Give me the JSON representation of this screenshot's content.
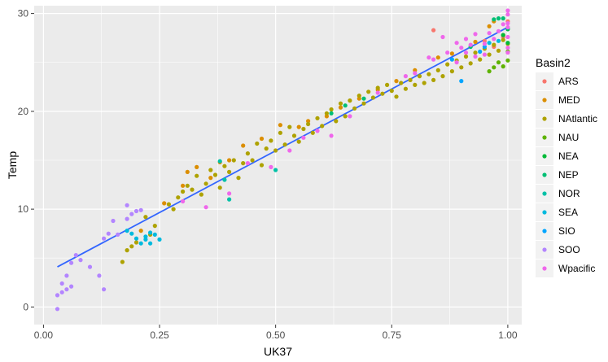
{
  "chart_data": {
    "type": "scatter",
    "xlabel": "UK37",
    "ylabel": "Temp",
    "xlim": [
      -0.02,
      1.03
    ],
    "ylim": [
      -1.8,
      30.8
    ],
    "xticks": [
      0.0,
      0.25,
      0.5,
      0.75,
      1.0
    ],
    "xtick_labels": [
      "0.00",
      "0.25",
      "0.50",
      "0.75",
      "1.00"
    ],
    "yticks": [
      0,
      10,
      20,
      30
    ],
    "ytick_labels": [
      "0",
      "10",
      "20",
      "30"
    ],
    "grid": true,
    "legend": {
      "title": "Basin2",
      "placement": "right",
      "entries": [
        "ARS",
        "MED",
        "NAtlantic",
        "NAU",
        "NEA",
        "NEP",
        "NOR",
        "SEA",
        "SIO",
        "SOO",
        "Wpacific"
      ]
    },
    "fit_line": {
      "label": "linear fit",
      "color": "#3366FF",
      "x": [
        0.03,
        1.0
      ],
      "y": [
        4.1,
        28.6
      ]
    },
    "series": [
      {
        "name": "ARS",
        "color": "#F8766D",
        "points": [
          [
            0.84,
            28.3
          ],
          [
            0.95,
            27.2
          ],
          [
            0.97,
            26.6
          ],
          [
            0.99,
            27.6
          ],
          [
            1.0,
            29.2
          ]
        ]
      },
      {
        "name": "MED",
        "color": "#DB8E00",
        "points": [
          [
            0.21,
            7.8
          ],
          [
            0.26,
            10.6
          ],
          [
            0.3,
            12.4
          ],
          [
            0.31,
            13.8
          ],
          [
            0.33,
            14.3
          ],
          [
            0.36,
            13.2
          ],
          [
            0.38,
            14.8
          ],
          [
            0.4,
            15.0
          ],
          [
            0.43,
            16.5
          ],
          [
            0.47,
            17.2
          ],
          [
            0.51,
            18.6
          ],
          [
            0.55,
            18.4
          ],
          [
            0.57,
            19.0
          ],
          [
            0.61,
            19.5
          ],
          [
            0.64,
            20.4
          ],
          [
            0.68,
            21.3
          ],
          [
            0.72,
            22.2
          ],
          [
            0.76,
            23.1
          ],
          [
            0.8,
            24.2
          ],
          [
            0.85,
            25.5
          ],
          [
            0.88,
            25.9
          ],
          [
            0.93,
            27.1
          ],
          [
            0.96,
            28.7
          ],
          [
            0.97,
            29.2
          ],
          [
            0.99,
            27.8
          ]
        ]
      },
      {
        "name": "NAtlantic",
        "color": "#AEA200",
        "points": [
          [
            0.17,
            4.6
          ],
          [
            0.18,
            5.8
          ],
          [
            0.19,
            6.2
          ],
          [
            0.2,
            6.6
          ],
          [
            0.22,
            9.2
          ],
          [
            0.23,
            7.4
          ],
          [
            0.24,
            8.3
          ],
          [
            0.27,
            10.5
          ],
          [
            0.28,
            10.0
          ],
          [
            0.29,
            11.2
          ],
          [
            0.3,
            11.8
          ],
          [
            0.31,
            12.4
          ],
          [
            0.32,
            12.0
          ],
          [
            0.33,
            13.4
          ],
          [
            0.34,
            11.5
          ],
          [
            0.35,
            12.6
          ],
          [
            0.36,
            14.0
          ],
          [
            0.37,
            13.5
          ],
          [
            0.38,
            12.2
          ],
          [
            0.39,
            14.4
          ],
          [
            0.4,
            13.8
          ],
          [
            0.41,
            15.0
          ],
          [
            0.42,
            13.2
          ],
          [
            0.43,
            14.7
          ],
          [
            0.44,
            15.7
          ],
          [
            0.45,
            15.0
          ],
          [
            0.46,
            16.7
          ],
          [
            0.47,
            14.5
          ],
          [
            0.48,
            16.2
          ],
          [
            0.49,
            17.0
          ],
          [
            0.5,
            16.0
          ],
          [
            0.51,
            17.8
          ],
          [
            0.52,
            16.6
          ],
          [
            0.53,
            18.4
          ],
          [
            0.54,
            17.5
          ],
          [
            0.55,
            16.9
          ],
          [
            0.56,
            18.2
          ],
          [
            0.57,
            18.7
          ],
          [
            0.58,
            17.8
          ],
          [
            0.59,
            19.3
          ],
          [
            0.6,
            18.5
          ],
          [
            0.61,
            19.8
          ],
          [
            0.62,
            20.2
          ],
          [
            0.63,
            19.0
          ],
          [
            0.64,
            20.8
          ],
          [
            0.65,
            19.5
          ],
          [
            0.66,
            21.1
          ],
          [
            0.67,
            20.3
          ],
          [
            0.68,
            21.6
          ],
          [
            0.69,
            20.8
          ],
          [
            0.7,
            22.0
          ],
          [
            0.71,
            21.4
          ],
          [
            0.72,
            22.4
          ],
          [
            0.73,
            21.8
          ],
          [
            0.74,
            22.7
          ],
          [
            0.75,
            22.1
          ],
          [
            0.76,
            21.5
          ],
          [
            0.77,
            22.9
          ],
          [
            0.78,
            22.3
          ],
          [
            0.79,
            23.2
          ],
          [
            0.8,
            22.7
          ],
          [
            0.81,
            23.6
          ],
          [
            0.82,
            22.9
          ],
          [
            0.83,
            23.8
          ],
          [
            0.84,
            23.2
          ],
          [
            0.85,
            24.2
          ],
          [
            0.86,
            23.6
          ],
          [
            0.87,
            24.8
          ],
          [
            0.88,
            24.1
          ],
          [
            0.89,
            25.2
          ],
          [
            0.9,
            24.5
          ],
          [
            0.91,
            25.6
          ],
          [
            0.92,
            24.9
          ],
          [
            0.93,
            26.0
          ],
          [
            0.94,
            25.3
          ],
          [
            0.95,
            26.4
          ],
          [
            0.96,
            25.8
          ],
          [
            0.97,
            26.8
          ],
          [
            0.98,
            26.2
          ],
          [
            0.99,
            27.3
          ],
          [
            1.0,
            26.9
          ]
        ]
      },
      {
        "name": "NAU",
        "color": "#5EB300",
        "points": [
          [
            0.96,
            24.1
          ],
          [
            0.97,
            24.5
          ],
          [
            0.98,
            25.0
          ],
          [
            0.99,
            24.6
          ],
          [
            1.0,
            26.1
          ],
          [
            1.0,
            25.2
          ]
        ]
      },
      {
        "name": "NEA",
        "color": "#00BA38",
        "points": [
          [
            0.99,
            27.8
          ],
          [
            1.0,
            28.4
          ],
          [
            1.0,
            27.0
          ]
        ]
      },
      {
        "name": "NEP",
        "color": "#00BF74",
        "points": [
          [
            0.62,
            19.8
          ],
          [
            0.65,
            20.6
          ],
          [
            0.69,
            21.3
          ],
          [
            0.92,
            26.6
          ],
          [
            0.97,
            29.4
          ],
          [
            0.98,
            29.5
          ],
          [
            0.99,
            29.5
          ],
          [
            1.0,
            28.5
          ]
        ]
      },
      {
        "name": "NOR",
        "color": "#00C1A7",
        "points": [
          [
            0.38,
            14.9
          ],
          [
            0.39,
            13.0
          ],
          [
            0.4,
            11.0
          ],
          [
            0.5,
            14.0
          ]
        ]
      },
      {
        "name": "SEA",
        "color": "#00BADE",
        "points": [
          [
            0.2,
            7.0
          ],
          [
            0.21,
            6.5
          ],
          [
            0.22,
            7.2
          ],
          [
            0.22,
            6.9
          ],
          [
            0.23,
            7.6
          ],
          [
            0.23,
            6.5
          ],
          [
            0.24,
            7.4
          ],
          [
            0.25,
            6.9
          ],
          [
            0.18,
            7.8
          ],
          [
            0.19,
            7.5
          ],
          [
            0.96,
            27.0
          ],
          [
            0.98,
            27.2
          ]
        ]
      },
      {
        "name": "SIO",
        "color": "#00A5FF",
        "points": [
          [
            0.88,
            25.3
          ],
          [
            0.9,
            23.1
          ],
          [
            0.94,
            26.1
          ],
          [
            0.95,
            26.6
          ]
        ]
      },
      {
        "name": "SOO",
        "color": "#B385FF",
        "points": [
          [
            0.03,
            -0.2
          ],
          [
            0.03,
            1.2
          ],
          [
            0.04,
            1.5
          ],
          [
            0.04,
            2.4
          ],
          [
            0.05,
            1.8
          ],
          [
            0.05,
            3.2
          ],
          [
            0.06,
            2.1
          ],
          [
            0.06,
            4.5
          ],
          [
            0.07,
            5.3
          ],
          [
            0.08,
            4.8
          ],
          [
            0.1,
            4.1
          ],
          [
            0.12,
            3.2
          ],
          [
            0.13,
            1.8
          ],
          [
            0.13,
            7.0
          ],
          [
            0.14,
            7.5
          ],
          [
            0.15,
            8.8
          ],
          [
            0.16,
            7.4
          ],
          [
            0.18,
            9.0
          ],
          [
            0.18,
            10.4
          ],
          [
            0.2,
            9.8
          ],
          [
            0.21,
            9.9
          ],
          [
            0.19,
            9.5
          ]
        ]
      },
      {
        "name": "Wpacific",
        "color": "#EF67EB",
        "points": [
          [
            0.3,
            10.8
          ],
          [
            0.35,
            10.2
          ],
          [
            0.4,
            11.6
          ],
          [
            0.44,
            14.7
          ],
          [
            0.49,
            14.3
          ],
          [
            0.53,
            16.0
          ],
          [
            0.56,
            17.3
          ],
          [
            0.59,
            18.0
          ],
          [
            0.62,
            17.5
          ],
          [
            0.66,
            19.5
          ],
          [
            0.72,
            21.9
          ],
          [
            0.78,
            23.6
          ],
          [
            0.8,
            23.9
          ],
          [
            0.83,
            25.5
          ],
          [
            0.84,
            25.3
          ],
          [
            0.86,
            27.6
          ],
          [
            0.87,
            26.0
          ],
          [
            0.89,
            27.0
          ],
          [
            0.9,
            26.5
          ],
          [
            0.91,
            27.4
          ],
          [
            0.92,
            26.8
          ],
          [
            0.93,
            27.9
          ],
          [
            0.95,
            26.9
          ],
          [
            0.96,
            28.0
          ],
          [
            0.97,
            27.4
          ],
          [
            0.98,
            28.2
          ],
          [
            0.99,
            28.9
          ],
          [
            1.0,
            30.3
          ],
          [
            1.0,
            29.9
          ],
          [
            1.0,
            29.0
          ],
          [
            1.0,
            28.6
          ],
          [
            1.0,
            27.6
          ],
          [
            1.0,
            26.5
          ],
          [
            1.0,
            26.0
          ],
          [
            0.95,
            25.8
          ],
          [
            0.93,
            25.6
          ],
          [
            0.91,
            26.0
          ],
          [
            0.89,
            25.0
          ]
        ]
      }
    ]
  }
}
